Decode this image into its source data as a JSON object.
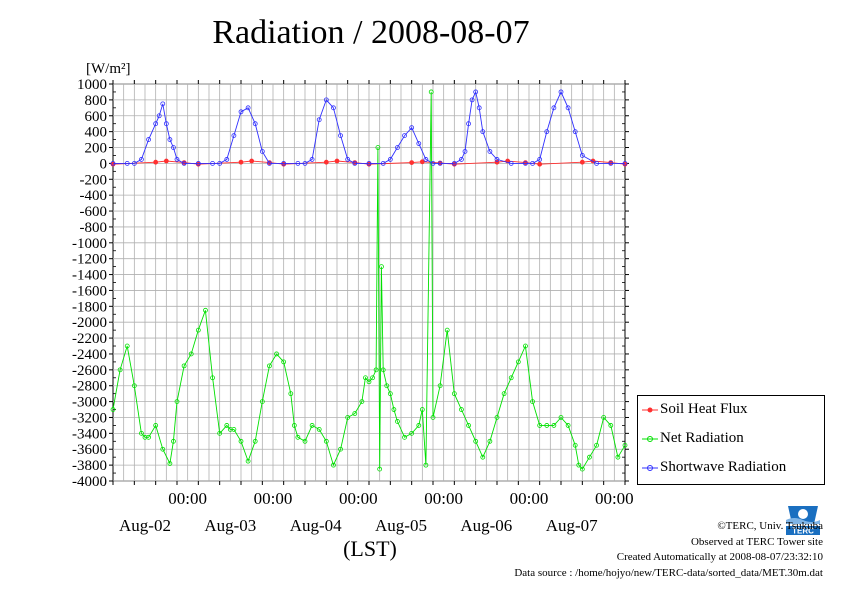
{
  "chart_data": {
    "type": "line",
    "title": "Radiation / 2008-08-07",
    "ylabel": "[W/m²]",
    "xlabel": "(LST)",
    "ylim": [
      -4000,
      1000
    ],
    "yticks": [
      1000,
      800,
      600,
      400,
      200,
      0,
      -200,
      -400,
      -600,
      -800,
      -1000,
      -1200,
      -1400,
      -1600,
      -1800,
      -2000,
      -2200,
      -2400,
      -2600,
      -2800,
      -3000,
      -3200,
      -3400,
      -3600,
      -3800,
      -4000
    ],
    "x_time_labels": [
      "00:00",
      "00:00",
      "00:00",
      "00:00",
      "00:00",
      "00:00"
    ],
    "x_date_labels": [
      "Aug-02",
      "Aug-03",
      "Aug-04",
      "Aug-05",
      "Aug-06",
      "Aug-07"
    ],
    "x_hours_range": [
      0,
      144
    ],
    "grid": true,
    "legend_position": "right",
    "series": [
      {
        "name": "Soil Heat Flux",
        "color": "#ff3030",
        "x": [
          0,
          12,
          15,
          20,
          24,
          36,
          39,
          44,
          48,
          60,
          63,
          68,
          72,
          84,
          87,
          92,
          96,
          108,
          111,
          116,
          120,
          132,
          135,
          140,
          144
        ],
        "values": [
          -10,
          15,
          30,
          10,
          -10,
          15,
          30,
          10,
          -10,
          15,
          30,
          10,
          -10,
          10,
          20,
          5,
          -10,
          15,
          30,
          10,
          -10,
          15,
          30,
          10,
          -10
        ]
      },
      {
        "name": "Net Radiation",
        "color": "#00e000",
        "x": [
          0,
          2,
          4,
          6,
          8,
          9,
          10,
          12,
          14,
          16,
          17,
          18,
          20,
          22,
          24,
          26,
          28,
          30,
          32,
          33,
          34,
          36,
          38,
          40,
          42,
          44,
          46,
          48,
          50,
          51,
          52,
          54,
          56,
          58,
          60,
          62,
          64,
          66,
          68,
          70,
          71,
          72,
          73,
          74,
          74.5,
          75,
          75.5,
          76,
          77,
          78,
          79,
          80,
          82,
          84,
          86,
          87,
          88,
          89.5,
          90,
          92,
          94,
          96,
          98,
          100,
          102,
          104,
          106,
          108,
          110,
          112,
          114,
          116,
          118,
          120,
          122,
          124,
          126,
          128,
          130,
          131,
          132,
          134,
          136,
          138,
          140,
          142,
          144
        ],
        "values": [
          -3100,
          -2600,
          -2300,
          -2800,
          -3400,
          -3450,
          -3450,
          -3300,
          -3600,
          -3780,
          -3500,
          -3000,
          -2550,
          -2400,
          -2100,
          -1850,
          -2700,
          -3400,
          -3300,
          -3350,
          -3350,
          -3500,
          -3750,
          -3500,
          -3000,
          -2550,
          -2400,
          -2500,
          -2900,
          -3300,
          -3450,
          -3500,
          -3300,
          -3350,
          -3500,
          -3800,
          -3600,
          -3200,
          -3150,
          -3000,
          -2700,
          -2750,
          -2700,
          -2600,
          200,
          -3850,
          -1300,
          -2600,
          -2800,
          -2900,
          -3100,
          -3250,
          -3450,
          -3400,
          -3300,
          -3100,
          -3800,
          900,
          -3200,
          -2800,
          -2100,
          -2900,
          -3100,
          -3300,
          -3500,
          -3700,
          -3500,
          -3200,
          -2900,
          -2700,
          -2500,
          -2300,
          -3000,
          -3300,
          -3300,
          -3300,
          -3200,
          -3300,
          -3550,
          -3800,
          -3850,
          -3700,
          -3550,
          -3200,
          -3300,
          -3700,
          -3550
        ]
      },
      {
        "name": "Shortwave Radiation",
        "color": "#3030ff",
        "x": [
          0,
          4,
          6,
          8,
          10,
          12,
          13,
          14,
          15,
          16,
          17,
          18,
          20,
          24,
          28,
          30,
          32,
          34,
          36,
          38,
          40,
          42,
          44,
          48,
          52,
          54,
          56,
          58,
          60,
          62,
          64,
          66,
          68,
          72,
          76,
          78,
          80,
          82,
          84,
          86,
          88,
          90,
          92,
          96,
          98,
          99,
          100,
          101,
          102,
          103,
          104,
          106,
          108,
          112,
          116,
          118,
          120,
          122,
          124,
          126,
          128,
          130,
          132,
          136,
          140,
          144
        ],
        "values": [
          0,
          0,
          0,
          50,
          300,
          500,
          600,
          750,
          500,
          300,
          200,
          50,
          0,
          0,
          0,
          0,
          50,
          350,
          650,
          700,
          500,
          150,
          0,
          0,
          0,
          0,
          50,
          550,
          800,
          700,
          350,
          50,
          0,
          0,
          0,
          50,
          200,
          350,
          450,
          250,
          50,
          0,
          0,
          0,
          50,
          150,
          500,
          800,
          900,
          700,
          400,
          150,
          50,
          0,
          0,
          0,
          50,
          400,
          700,
          900,
          700,
          400,
          100,
          0,
          0,
          0
        ]
      }
    ]
  },
  "legend": {
    "items": [
      {
        "label": "Soil Heat Flux",
        "color": "#ff3030"
      },
      {
        "label": "Net Radiation",
        "color": "#00e000"
      },
      {
        "label": "Shortwave Radiation",
        "color": "#3030ff"
      }
    ]
  },
  "credits": {
    "copyright": "©TERC, Univ. Tsukuba",
    "observed": "Observed at TERC Tower site",
    "created": "Created Automatically at 2008-08-07/23:32:10",
    "source": "Data source : /home/hojyo/new/TERC-data/sorted_data/MET.30m.dat"
  },
  "logo": {
    "text": "TERC",
    "color": "#1a6fc0"
  }
}
